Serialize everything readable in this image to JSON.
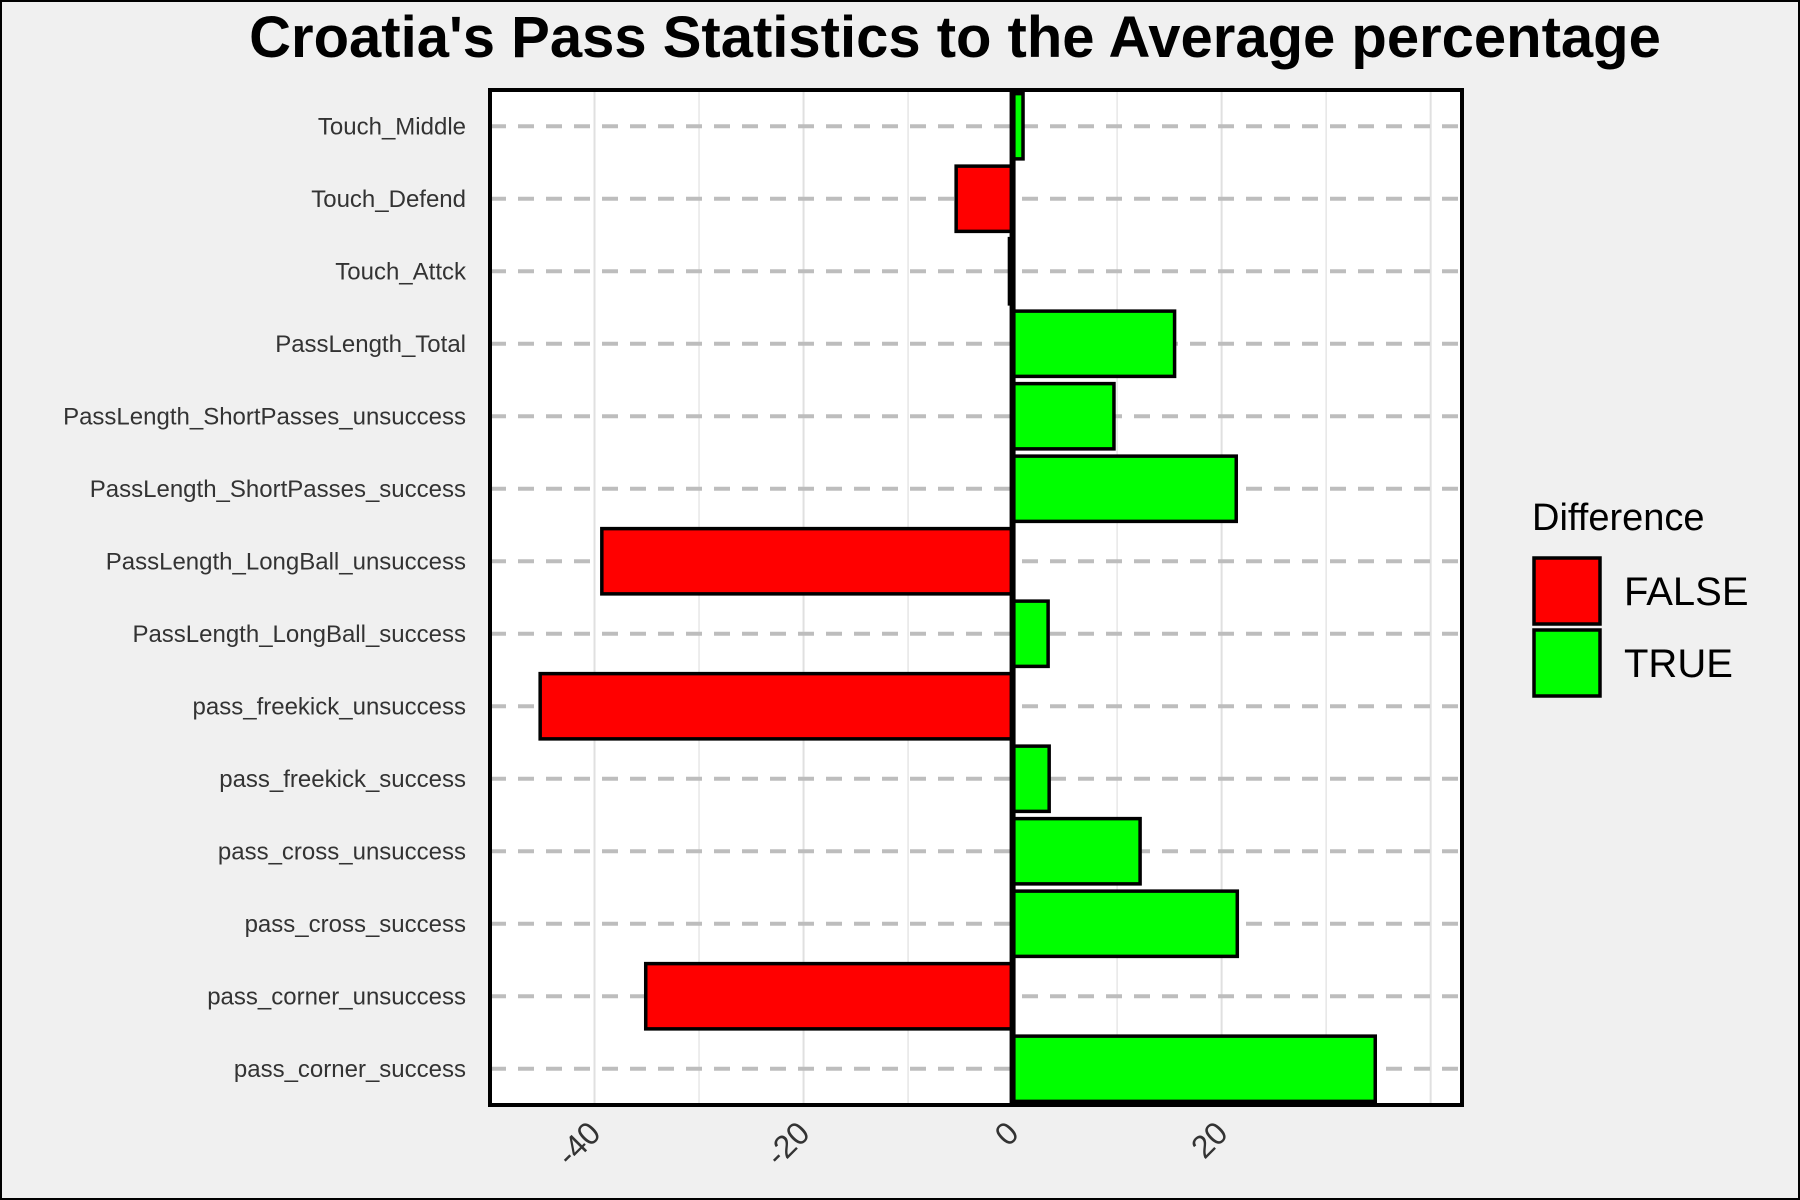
{
  "chart_data": {
    "type": "bar",
    "orientation": "horizontal",
    "title": "Croatia's Pass Statistics to the Average percentage",
    "xlabel": "",
    "ylabel": "",
    "xlim": [
      -50,
      43
    ],
    "xticks": [
      -40,
      -20,
      0,
      20
    ],
    "grid": true,
    "categories": [
      "Touch_Middle",
      "Touch_Defend",
      "Touch_Attck",
      "PassLength_Total",
      "PassLength_ShortPasses_unsuccess",
      "PassLength_ShortPasses_success",
      "PassLength_LongBall_unsuccess",
      "PassLength_LongBall_success",
      "pass_freekick_unsuccess",
      "pass_freekick_success",
      "pass_cross_unsuccess",
      "pass_cross_success",
      "pass_corner_unsuccess",
      "pass_corner_success"
    ],
    "values": [
      1,
      -5.4,
      -0.3,
      15.5,
      9.7,
      21.4,
      -39.3,
      3.4,
      -45.2,
      3.5,
      12.2,
      21.5,
      -35.1,
      34.7
    ],
    "legend": {
      "title": "Difference",
      "placement": "right",
      "entries": [
        {
          "label": "FALSE",
          "color": "#ff0000"
        },
        {
          "label": "TRUE",
          "color": "#00ff00"
        }
      ]
    },
    "colors": {
      "negative": "#ff0000",
      "positive": "#00ff00"
    }
  }
}
